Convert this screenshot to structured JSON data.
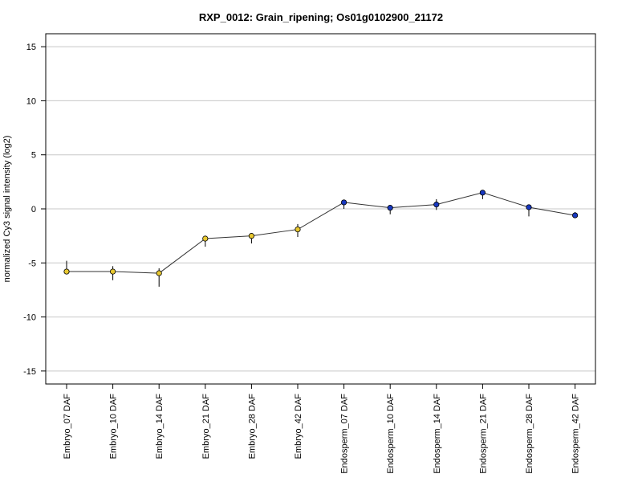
{
  "chart_data": {
    "type": "line",
    "title": "RXP_0012: Grain_ripening; Os01g0102900_21172",
    "xlabel": "",
    "ylabel": "normalized Cy3 signal intensity (log2)",
    "ylim": [
      -16.2,
      16.2
    ],
    "yticks": [
      15,
      10,
      5,
      0,
      -5,
      -10,
      -15
    ],
    "ytick_labels": [
      "15",
      "10",
      "5",
      "0",
      "-5",
      "-10",
      "-15"
    ],
    "grid": true,
    "categories": [
      "Embryo_07 DAF",
      "Embryo_10 DAF",
      "Embryo_14 DAF",
      "Embryo_21 DAF",
      "Embryo_28 DAF",
      "Embryo_42 DAF",
      "Endosperm_07 DAF",
      "Endosperm_10 DAF",
      "Endosperm_14 DAF",
      "Endosperm_21 DAF",
      "Endosperm_28 DAF",
      "Endosperm_42 DAF"
    ],
    "values": [
      -5.8,
      -5.8,
      -5.95,
      -2.75,
      -2.5,
      -1.9,
      0.6,
      0.1,
      0.4,
      1.5,
      0.15,
      -0.6
    ],
    "error_low": [
      -5.8,
      -6.6,
      -7.2,
      -3.5,
      -3.2,
      -2.6,
      0.0,
      -0.5,
      -0.1,
      0.9,
      -0.7,
      -0.8
    ],
    "error_high": [
      -4.8,
      -5.3,
      -5.5,
      -2.5,
      -2.4,
      -1.4,
      0.8,
      0.3,
      0.9,
      1.7,
      0.3,
      -0.3
    ],
    "point_colors": [
      "#e8c830",
      "#e8c830",
      "#e8c830",
      "#e8c830",
      "#e8c830",
      "#e8c830",
      "#1838c0",
      "#1838c0",
      "#1838c0",
      "#1838c0",
      "#1838c0",
      "#1838c0"
    ],
    "line_color": "#333333",
    "grid_color": "#c8c8c8"
  }
}
